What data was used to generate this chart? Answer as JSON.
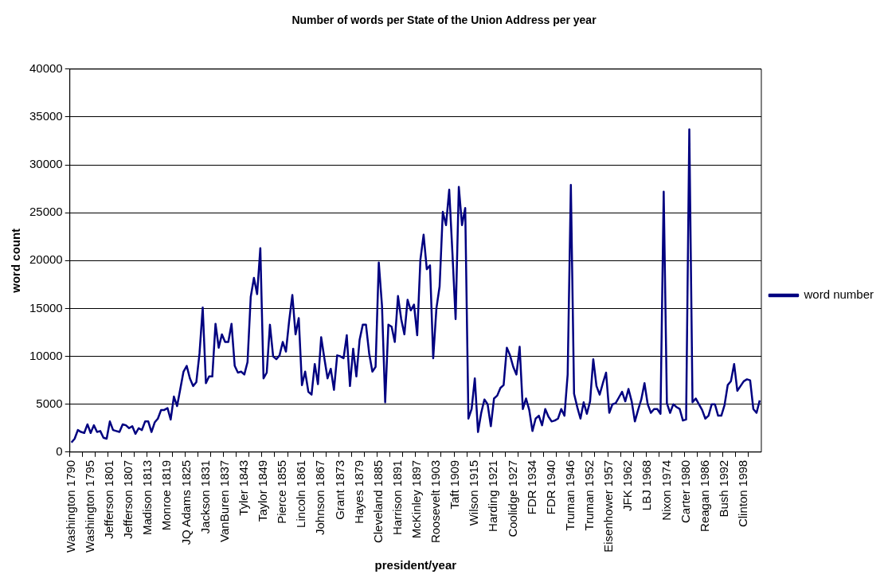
{
  "chart_data": {
    "type": "line",
    "title": "Number of words per State of the Union Address per year",
    "xlabel": "president/year",
    "ylabel": "word count",
    "categories": [
      "Washington 1790",
      null,
      null,
      null,
      null,
      null,
      "Washington 1795",
      null,
      null,
      null,
      null,
      null,
      "Jefferson 1801",
      null,
      null,
      null,
      null,
      null,
      "Jefferson 1807",
      null,
      null,
      null,
      null,
      null,
      "Madison 1813",
      null,
      null,
      null,
      null,
      null,
      "Monroe 1819",
      null,
      null,
      null,
      null,
      null,
      "JQ Adams 1825",
      null,
      null,
      null,
      null,
      null,
      "Jackson 1831",
      null,
      null,
      null,
      null,
      null,
      "VanBuren 1837",
      null,
      null,
      null,
      null,
      null,
      "Tyler 1843",
      null,
      null,
      null,
      null,
      null,
      "Taylor 1849",
      null,
      null,
      null,
      null,
      null,
      "Pierce 1855",
      null,
      null,
      null,
      null,
      null,
      "Lincoln 1861",
      null,
      null,
      null,
      null,
      null,
      "Johnson 1867",
      null,
      null,
      null,
      null,
      null,
      "Grant 1873",
      null,
      null,
      null,
      null,
      null,
      "Hayes 1879",
      null,
      null,
      null,
      null,
      null,
      "Cleveland 1885",
      null,
      null,
      null,
      null,
      null,
      "Harrison 1891",
      null,
      null,
      null,
      null,
      null,
      "McKinley 1897",
      null,
      null,
      null,
      null,
      null,
      "Roosevelt 1903",
      null,
      null,
      null,
      null,
      null,
      "Taft 1909",
      null,
      null,
      null,
      null,
      null,
      "Wilson 1915",
      null,
      null,
      null,
      null,
      null,
      "Harding 1921",
      null,
      null,
      null,
      null,
      null,
      "Coolidge 1927",
      null,
      null,
      null,
      null,
      null,
      "FDR 1934",
      null,
      null,
      null,
      null,
      null,
      "FDR 1940",
      null,
      null,
      null,
      null,
      null,
      "Truman 1946",
      null,
      null,
      null,
      null,
      null,
      "Truman 1952",
      null,
      null,
      null,
      null,
      null,
      "Eisenhower 1957",
      null,
      null,
      null,
      null,
      null,
      "JFK 1962",
      null,
      null,
      null,
      null,
      null,
      "LBJ 1968",
      null,
      null,
      null,
      null,
      null,
      "Nixon 1974",
      null,
      null,
      null,
      null,
      null,
      "Carter 1980",
      null,
      null,
      null,
      null,
      null,
      "Reagan 1986",
      null,
      null,
      null,
      null,
      null,
      "Bush 1992",
      null,
      null,
      null,
      null,
      null,
      "Clinton 1998",
      null,
      null,
      null,
      null,
      null
    ],
    "series": [
      {
        "name": "word number",
        "color": "#000080",
        "values": [
          1000,
          1400,
          2300,
          2100,
          2000,
          2900,
          2000,
          2800,
          2100,
          2200,
          1500,
          1400,
          3200,
          2300,
          2200,
          2100,
          2900,
          2800,
          2500,
          2700,
          1900,
          2500,
          2300,
          3200,
          3200,
          2100,
          3100,
          3500,
          4400,
          4400,
          4600,
          3400,
          5800,
          4800,
          6600,
          8400,
          9000,
          7700,
          6900,
          7300,
          10300,
          15100,
          7200,
          7900,
          7900,
          13400,
          10900,
          12300,
          11500,
          11500,
          13400,
          9000,
          8300,
          8400,
          8100,
          9400,
          16200,
          18200,
          16500,
          21300,
          7700,
          8300,
          13300,
          10000,
          9700,
          10100,
          11500,
          10500,
          13700,
          16400,
          12300,
          14000,
          7000,
          8400,
          6300,
          6000,
          9200,
          7100,
          12000,
          9800,
          7700,
          8700,
          6500,
          10100,
          10000,
          9800,
          12200,
          6900,
          10800,
          7900,
          11700,
          13300,
          13300,
          10300,
          8400,
          8900,
          19800,
          15300,
          5200,
          13300,
          13100,
          11500,
          16300,
          13900,
          12300,
          15900,
          14800,
          15400,
          12200,
          20100,
          22700,
          19100,
          19500,
          9800,
          15000,
          17300,
          25100,
          23700,
          27400,
          20800,
          13900,
          27700,
          23700,
          25500,
          3500,
          4500,
          7700,
          2100,
          4100,
          5500,
          5000,
          2700,
          5600,
          5900,
          6700,
          7000,
          10900,
          10100,
          8900,
          8100,
          11000,
          4500,
          5600,
          4400,
          2200,
          3500,
          3800,
          2800,
          4500,
          3700,
          3200,
          3300,
          3500,
          4500,
          3800,
          8100,
          27900,
          6100,
          4700,
          3500,
          5200,
          4000,
          5300,
          9700,
          6900,
          6000,
          7200,
          8300,
          4100,
          5000,
          5100,
          5700,
          6300,
          5300,
          6600,
          5300,
          3200,
          4400,
          5500,
          7200,
          5000,
          4100,
          4500,
          4500,
          4000,
          27200,
          5100,
          4100,
          5000,
          4700,
          4500,
          3300,
          3400,
          33700,
          5200,
          5600,
          5000,
          4400,
          3500,
          3800,
          5000,
          5000,
          3800,
          3800,
          4900,
          7000,
          7400,
          9200,
          6400,
          6900,
          7400,
          7600,
          7500,
          4500,
          4100,
          5400
        ]
      }
    ],
    "ylim": [
      0,
      40000
    ],
    "yticks": [
      0,
      5000,
      10000,
      15000,
      20000,
      25000,
      30000,
      35000,
      40000
    ],
    "grid": "y",
    "legend": "right",
    "marker": "none",
    "line_style": "solid"
  }
}
